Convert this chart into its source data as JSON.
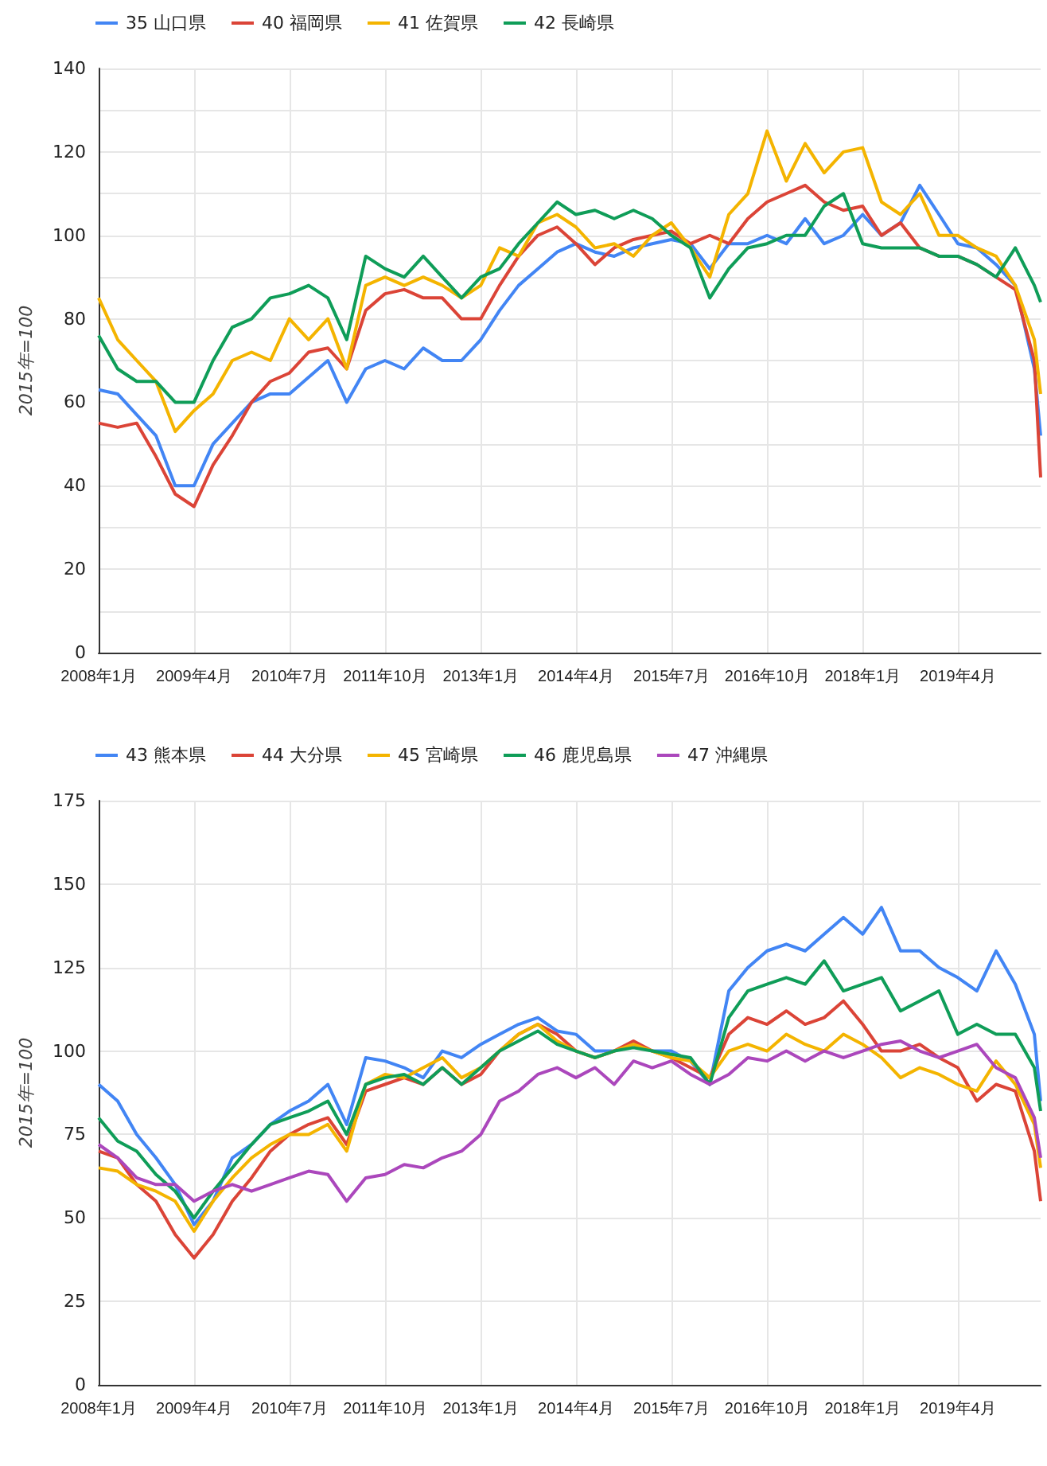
{
  "chart_data": [
    {
      "type": "line",
      "ylabel": "2015年=100",
      "legend": "top left",
      "grid": true,
      "x": [
        "2008-01",
        "2008-04",
        "2008-07",
        "2008-10",
        "2009-01",
        "2009-04",
        "2009-07",
        "2009-10",
        "2010-01",
        "2010-04",
        "2010-07",
        "2010-10",
        "2011-01",
        "2011-04",
        "2011-07",
        "2011-10",
        "2012-01",
        "2012-04",
        "2012-07",
        "2012-10",
        "2013-01",
        "2013-04",
        "2013-07",
        "2013-10",
        "2014-01",
        "2014-04",
        "2014-07",
        "2014-10",
        "2015-01",
        "2015-04",
        "2015-07",
        "2015-10",
        "2016-01",
        "2016-04",
        "2016-07",
        "2016-10",
        "2017-01",
        "2017-04",
        "2017-07",
        "2017-10",
        "2018-01",
        "2018-04",
        "2018-07",
        "2018-10",
        "2019-01",
        "2019-04",
        "2019-07",
        "2019-10",
        "2020-01",
        "2020-04",
        "2020-05"
      ],
      "xlim": [
        "2008-01",
        "2020-05"
      ],
      "xticks": [
        {
          "value": "2008-01",
          "label": "2008年1月"
        },
        {
          "value": "2009-04",
          "label": "2009年4月"
        },
        {
          "value": "2010-07",
          "label": "2010年7月"
        },
        {
          "value": "2011-10",
          "label": "2011年10月"
        },
        {
          "value": "2013-01",
          "label": "2013年1月"
        },
        {
          "value": "2014-04",
          "label": "2014年4月"
        },
        {
          "value": "2015-07",
          "label": "2015年7月"
        },
        {
          "value": "2016-10",
          "label": "2016年10月"
        },
        {
          "value": "2018-01",
          "label": "2018年1月"
        },
        {
          "value": "2019-04",
          "label": "2019年4月"
        }
      ],
      "ylim": [
        0,
        140
      ],
      "yticks": [
        0,
        {
          "value": 10,
          "label": null
        },
        20,
        {
          "value": 30,
          "label": null
        },
        40,
        {
          "value": 50,
          "label": null
        },
        60,
        {
          "value": 70,
          "label": null
        },
        80,
        {
          "value": 90,
          "label": null
        },
        100,
        {
          "value": 110,
          "label": null
        },
        120,
        {
          "value": 130,
          "label": null
        },
        140
      ],
      "series": [
        {
          "name": "35 山口県",
          "color": "#4285f4",
          "values": [
            63,
            62,
            57,
            52,
            40,
            40,
            50,
            55,
            60,
            62,
            62,
            66,
            70,
            60,
            68,
            70,
            68,
            73,
            70,
            70,
            75,
            82,
            88,
            92,
            96,
            98,
            96,
            95,
            97,
            98,
            99,
            98,
            92,
            98,
            98,
            100,
            98,
            104,
            98,
            100,
            105,
            100,
            103,
            112,
            105,
            98,
            97,
            93,
            88,
            68,
            52
          ]
        },
        {
          "name": "40 福岡県",
          "color": "#db4437",
          "values": [
            55,
            54,
            55,
            47,
            38,
            35,
            45,
            52,
            60,
            65,
            67,
            72,
            73,
            68,
            82,
            86,
            87,
            85,
            85,
            80,
            80,
            88,
            95,
            100,
            102,
            98,
            93,
            97,
            99,
            100,
            101,
            98,
            100,
            98,
            104,
            108,
            110,
            112,
            108,
            106,
            107,
            100,
            103,
            97,
            95,
            95,
            93,
            90,
            87,
            70,
            42
          ]
        },
        {
          "name": "41 佐賀県",
          "color": "#f4b400",
          "values": [
            85,
            75,
            70,
            65,
            53,
            58,
            62,
            70,
            72,
            70,
            80,
            75,
            80,
            68,
            88,
            90,
            88,
            90,
            88,
            85,
            88,
            97,
            95,
            103,
            105,
            102,
            97,
            98,
            95,
            100,
            103,
            97,
            90,
            105,
            110,
            125,
            113,
            122,
            115,
            120,
            121,
            108,
            105,
            110,
            100,
            100,
            97,
            95,
            88,
            75,
            62
          ]
        },
        {
          "name": "42 長崎県",
          "color": "#0f9d58",
          "values": [
            76,
            68,
            65,
            65,
            60,
            60,
            70,
            78,
            80,
            85,
            86,
            88,
            85,
            75,
            95,
            92,
            90,
            95,
            90,
            85,
            90,
            92,
            98,
            103,
            108,
            105,
            106,
            104,
            106,
            104,
            100,
            97,
            85,
            92,
            97,
            98,
            100,
            100,
            107,
            110,
            98,
            97,
            97,
            97,
            95,
            95,
            93,
            90,
            97,
            88,
            84
          ]
        }
      ]
    },
    {
      "type": "line",
      "ylabel": "2015年=100",
      "legend": "top left",
      "grid": true,
      "x": [
        "2008-01",
        "2008-04",
        "2008-07",
        "2008-10",
        "2009-01",
        "2009-04",
        "2009-07",
        "2009-10",
        "2010-01",
        "2010-04",
        "2010-07",
        "2010-10",
        "2011-01",
        "2011-04",
        "2011-07",
        "2011-10",
        "2012-01",
        "2012-04",
        "2012-07",
        "2012-10",
        "2013-01",
        "2013-04",
        "2013-07",
        "2013-10",
        "2014-01",
        "2014-04",
        "2014-07",
        "2014-10",
        "2015-01",
        "2015-04",
        "2015-07",
        "2015-10",
        "2016-01",
        "2016-04",
        "2016-07",
        "2016-10",
        "2017-01",
        "2017-04",
        "2017-07",
        "2017-10",
        "2018-01",
        "2018-04",
        "2018-07",
        "2018-10",
        "2019-01",
        "2019-04",
        "2019-07",
        "2019-10",
        "2020-01",
        "2020-04",
        "2020-05"
      ],
      "xlim": [
        "2008-01",
        "2020-05"
      ],
      "xticks": [
        {
          "value": "2008-01",
          "label": "2008年1月"
        },
        {
          "value": "2009-04",
          "label": "2009年4月"
        },
        {
          "value": "2010-07",
          "label": "2010年7月"
        },
        {
          "value": "2011-10",
          "label": "2011年10月"
        },
        {
          "value": "2013-01",
          "label": "2013年1月"
        },
        {
          "value": "2014-04",
          "label": "2014年4月"
        },
        {
          "value": "2015-07",
          "label": "2015年7月"
        },
        {
          "value": "2016-10",
          "label": "2016年10月"
        },
        {
          "value": "2018-01",
          "label": "2018年1月"
        },
        {
          "value": "2019-04",
          "label": "2019年4月"
        }
      ],
      "ylim": [
        0,
        175
      ],
      "yticks": [
        0,
        25,
        50,
        75,
        100,
        125,
        150,
        175
      ],
      "series": [
        {
          "name": "43 熊本県",
          "color": "#4285f4",
          "values": [
            90,
            85,
            75,
            68,
            60,
            48,
            55,
            68,
            72,
            78,
            82,
            85,
            90,
            78,
            98,
            97,
            95,
            92,
            100,
            98,
            102,
            105,
            108,
            110,
            106,
            105,
            100,
            100,
            102,
            100,
            100,
            97,
            90,
            118,
            125,
            130,
            132,
            130,
            135,
            140,
            135,
            143,
            130,
            130,
            125,
            122,
            118,
            130,
            120,
            105,
            85
          ]
        },
        {
          "name": "44 大分県",
          "color": "#db4437",
          "values": [
            70,
            68,
            60,
            55,
            45,
            38,
            45,
            55,
            62,
            70,
            75,
            78,
            80,
            72,
            88,
            90,
            92,
            90,
            95,
            90,
            93,
            100,
            105,
            108,
            105,
            100,
            98,
            100,
            103,
            100,
            98,
            95,
            92,
            105,
            110,
            108,
            112,
            108,
            110,
            115,
            108,
            100,
            100,
            102,
            98,
            95,
            85,
            90,
            88,
            70,
            55
          ]
        },
        {
          "name": "45 宮崎県",
          "color": "#f4b400",
          "values": [
            65,
            64,
            60,
            58,
            55,
            46,
            55,
            62,
            68,
            72,
            75,
            75,
            78,
            70,
            90,
            93,
            92,
            95,
            98,
            92,
            95,
            100,
            105,
            108,
            103,
            100,
            98,
            100,
            102,
            100,
            98,
            97,
            92,
            100,
            102,
            100,
            105,
            102,
            100,
            105,
            102,
            98,
            92,
            95,
            93,
            90,
            88,
            97,
            90,
            78,
            65
          ]
        },
        {
          "name": "46 鹿児島県",
          "color": "#0f9d58",
          "values": [
            80,
            73,
            70,
            63,
            58,
            50,
            58,
            65,
            72,
            78,
            80,
            82,
            85,
            75,
            90,
            92,
            93,
            90,
            95,
            90,
            95,
            100,
            103,
            106,
            102,
            100,
            98,
            100,
            101,
            100,
            99,
            98,
            90,
            110,
            118,
            120,
            122,
            120,
            127,
            118,
            120,
            122,
            112,
            115,
            118,
            105,
            108,
            105,
            105,
            95,
            82
          ]
        },
        {
          "name": "47 沖縄県",
          "color": "#ab47bc",
          "values": [
            72,
            68,
            62,
            60,
            60,
            55,
            58,
            60,
            58,
            60,
            62,
            64,
            63,
            55,
            62,
            63,
            66,
            65,
            68,
            70,
            75,
            85,
            88,
            93,
            95,
            92,
            95,
            90,
            97,
            95,
            97,
            93,
            90,
            93,
            98,
            97,
            100,
            97,
            100,
            98,
            100,
            102,
            103,
            100,
            98,
            100,
            102,
            95,
            92,
            80,
            68
          ]
        }
      ]
    }
  ]
}
